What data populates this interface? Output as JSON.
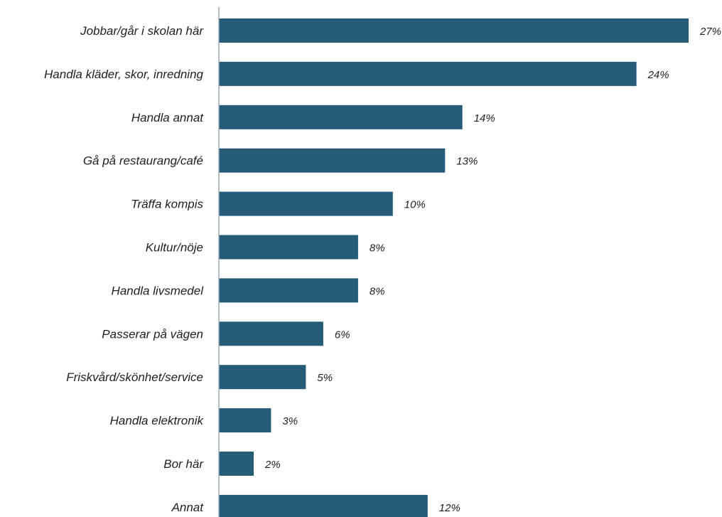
{
  "chart_data": {
    "type": "bar",
    "orientation": "horizontal",
    "categories": [
      "Jobbar/går i skolan här",
      "Handla kläder, skor, inredning",
      "Handla annat",
      "Gå på restaurang/café",
      "Träffa kompis",
      "Kultur/nöje",
      "Handla livsmedel",
      "Passerar på vägen",
      "Friskvård/skönhet/service",
      "Handla elektronik",
      "Bor här",
      "Annat"
    ],
    "values": [
      27,
      24,
      14,
      13,
      10,
      8,
      8,
      6,
      5,
      3,
      2,
      12
    ],
    "value_labels": [
      "27%",
      "24%",
      "14%",
      "13%",
      "10%",
      "8%",
      "8%",
      "6%",
      "5%",
      "3%",
      "2%",
      "12%"
    ],
    "unit": "%",
    "xlim": [
      0,
      27
    ],
    "grid": false,
    "legend": "none",
    "bar_color": "#265c78",
    "axis_color": "#9aaab4"
  }
}
